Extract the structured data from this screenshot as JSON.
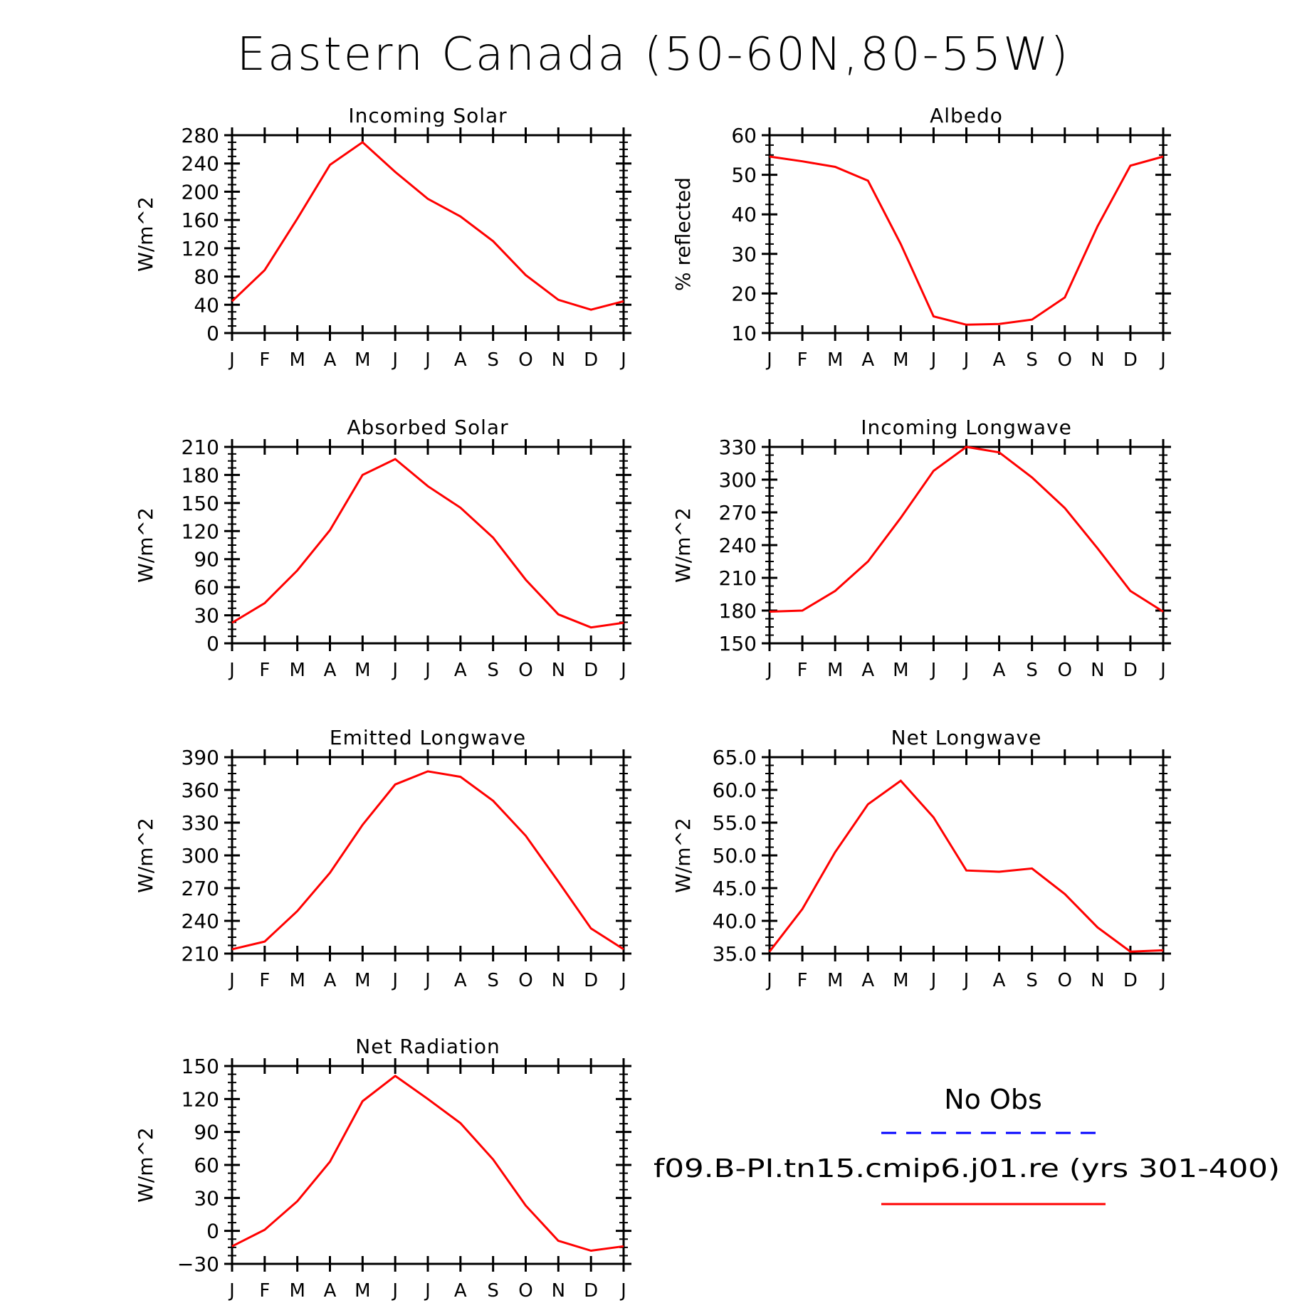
{
  "title": "Eastern Canada (50-60N,80-55W)",
  "months": [
    "J",
    "F",
    "M",
    "A",
    "M",
    "J",
    "J",
    "A",
    "S",
    "O",
    "N",
    "D",
    "J"
  ],
  "colors": {
    "model": "#ff0000",
    "obs": "#0000ff",
    "axis": "#000000"
  },
  "legend": {
    "obs_label": "No Obs",
    "model_label": "f09.B-PI.tn15.cmip6.j01.re (yrs 301-400)"
  },
  "chart_data": [
    {
      "type": "line",
      "title": "Incoming Solar",
      "ylabel": "W/m^2",
      "ylim": [
        0,
        280
      ],
      "yticks": [
        "0",
        "40",
        "80",
        "120",
        "160",
        "200",
        "240",
        "280"
      ],
      "series": [
        {
          "values": [
            45,
            89,
            162,
            238,
            270,
            228,
            190,
            165,
            130,
            82,
            47,
            33,
            45
          ]
        }
      ]
    },
    {
      "type": "line",
      "title": "Albedo",
      "ylabel": "% reflected",
      "ylim": [
        10,
        60
      ],
      "yticks": [
        "10",
        "20",
        "30",
        "40",
        "50",
        "60"
      ],
      "series": [
        {
          "values": [
            54.6,
            53.4,
            52,
            48.5,
            32.5,
            14.2,
            12.1,
            12.3,
            13.4,
            19,
            37,
            52.3,
            54.6
          ]
        }
      ]
    },
    {
      "type": "line",
      "title": "Absorbed Solar",
      "ylabel": "W/m^2",
      "ylim": [
        0,
        210
      ],
      "yticks": [
        "0",
        "30",
        "60",
        "90",
        "120",
        "150",
        "180",
        "210"
      ],
      "series": [
        {
          "values": [
            22,
            43,
            78,
            121,
            180,
            197,
            168,
            145,
            113,
            68,
            31,
            17,
            22
          ]
        }
      ]
    },
    {
      "type": "line",
      "title": "Incoming Longwave",
      "ylabel": "W/m^2",
      "ylim": [
        150,
        330
      ],
      "yticks": [
        "150",
        "180",
        "210",
        "240",
        "270",
        "300",
        "330"
      ],
      "series": [
        {
          "values": [
            179,
            180,
            198,
            225,
            265,
            308,
            330,
            325,
            302,
            274,
            237,
            198,
            179
          ]
        }
      ]
    },
    {
      "type": "line",
      "title": "Emitted Longwave",
      "ylabel": "W/m^2",
      "ylim": [
        210,
        390
      ],
      "yticks": [
        "210",
        "240",
        "270",
        "300",
        "330",
        "360",
        "390"
      ],
      "series": [
        {
          "values": [
            214,
            221,
            249,
            284,
            328,
            365,
            377,
            372,
            350,
            318,
            276,
            233,
            214
          ]
        }
      ]
    },
    {
      "type": "line",
      "title": "Net Longwave",
      "ylabel": "W/m^2",
      "ylim": [
        35,
        65
      ],
      "yticks": [
        "35.0",
        "40.0",
        "45.0",
        "50.0",
        "55.0",
        "60.0",
        "65.0"
      ],
      "series": [
        {
          "values": [
            35.3,
            41.8,
            50.5,
            57.8,
            61.4,
            55.8,
            47.7,
            47.5,
            48,
            44.1,
            39,
            35.3,
            35.5
          ]
        }
      ]
    },
    {
      "type": "line",
      "title": "Net Radiation",
      "ylabel": "W/m^2",
      "ylim": [
        -30,
        150
      ],
      "yticks": [
        "−30",
        "0",
        "30",
        "60",
        "90",
        "120",
        "150"
      ],
      "series": [
        {
          "values": [
            -14,
            1,
            27,
            63,
            118,
            141,
            120,
            98,
            65,
            23,
            -9,
            -18,
            -14
          ]
        }
      ]
    }
  ]
}
